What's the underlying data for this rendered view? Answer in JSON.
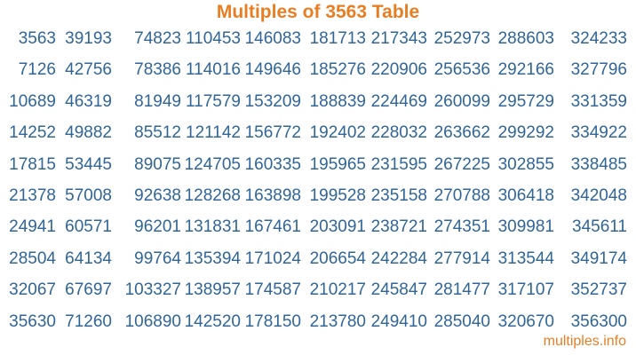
{
  "page": {
    "title": "Multiples of 3563 Table",
    "footer_link": "multiples.info"
  },
  "colors": {
    "accent_orange": "#E87E23",
    "number_blue": "#306598"
  },
  "chart_data": {
    "type": "table",
    "title": "Multiples of 3563 Table",
    "layout": "column-major, 10 rows x 10 columns, right-aligned cells",
    "rows": [
      [
        3563,
        39193,
        74823,
        110453,
        146083,
        181713,
        217343,
        252973,
        288603,
        324233
      ],
      [
        7126,
        42756,
        78386,
        114016,
        149646,
        185276,
        220906,
        256536,
        292166,
        327796
      ],
      [
        10689,
        46319,
        81949,
        117579,
        153209,
        188839,
        224469,
        260099,
        295729,
        331359
      ],
      [
        14252,
        49882,
        85512,
        121142,
        156772,
        192402,
        228032,
        263662,
        299292,
        334922
      ],
      [
        17815,
        53445,
        89075,
        124705,
        160335,
        195965,
        231595,
        267225,
        302855,
        338485
      ],
      [
        21378,
        57008,
        92638,
        128268,
        163898,
        199528,
        235158,
        270788,
        306418,
        342048
      ],
      [
        24941,
        60571,
        96201,
        131831,
        167461,
        203091,
        238721,
        274351,
        309981,
        345611
      ],
      [
        28504,
        64134,
        99764,
        135394,
        171024,
        206654,
        242284,
        277914,
        313544,
        349174
      ],
      [
        32067,
        67697,
        103327,
        138957,
        174587,
        210217,
        245847,
        281477,
        317107,
        352737
      ],
      [
        35630,
        71260,
        106890,
        142520,
        178150,
        213780,
        249410,
        285040,
        320670,
        356300
      ]
    ]
  }
}
